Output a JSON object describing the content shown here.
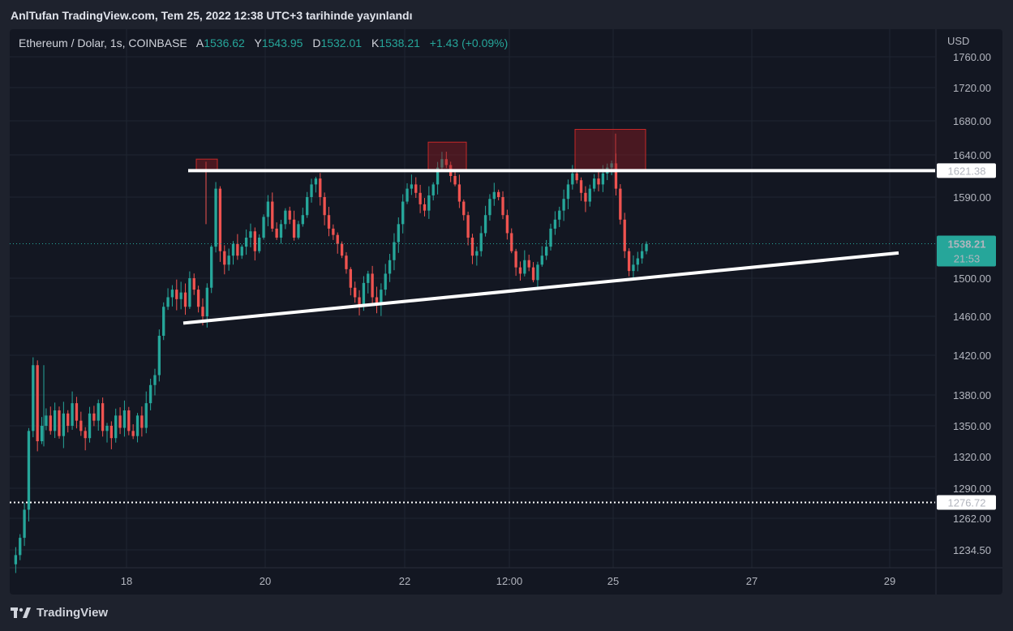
{
  "header": {
    "publisher_line": "AnlTufan TradingView.com, Tem 25, 2022 12:38 UTC+3 tarihinde yayınlandı"
  },
  "legend": {
    "symbol": "Ethereum / Dolar, 1s, COINBASE",
    "open_label": "A",
    "open": "1536.62",
    "high_label": "Y",
    "high": "1543.95",
    "low_label": "D",
    "low": "1532.01",
    "close_label": "K",
    "close": "1538.21",
    "change": "+1.43 (+0.09%)"
  },
  "footer": {
    "brand": "TradingView"
  },
  "colors": {
    "up": "#26a69a",
    "down": "#ef5350",
    "background": "#131722",
    "frame": "#1e222d",
    "grid": "#1f2531",
    "zone": "#8b1a22"
  },
  "chart_data": {
    "type": "candlestick",
    "currency_label": "USD",
    "y_ticks": [
      "1760.00",
      "1720.00",
      "1680.00",
      "1640.00",
      "1590.00",
      "1500.00",
      "1460.00",
      "1420.00",
      "1380.00",
      "1350.00",
      "1320.00",
      "1290.00",
      "1262.00",
      "1234.50"
    ],
    "y_tick_values": [
      1760,
      1720,
      1680,
      1640,
      1590,
      1500,
      1460,
      1420,
      1380,
      1350,
      1320,
      1290,
      1262,
      1234.5
    ],
    "x_ticks": [
      "18",
      "20",
      "22",
      "12:00",
      "25",
      "27",
      "29"
    ],
    "price_labels": [
      {
        "text": "1621.38",
        "value": 1621.38,
        "style": "outline"
      },
      {
        "text": "1538.21",
        "value": 1538.21,
        "style": "current",
        "countdown": "21:53"
      },
      {
        "text": "1276.72",
        "value": 1276.72,
        "style": "outline"
      }
    ],
    "current_price": 1538.21,
    "dotted_level": 1276.72,
    "resistance_line": 1621.38,
    "support_line": {
      "from": 1453,
      "to": 1528
    },
    "zones": [
      {
        "low": 1621.38,
        "high": 1635
      },
      {
        "low": 1621.38,
        "high": 1655
      },
      {
        "low": 1621.38,
        "high": 1670
      }
    ],
    "price_path": [
      1222,
      1230,
      1245,
      1270,
      1345,
      1410,
      1335,
      1350,
      1360,
      1345,
      1365,
      1340,
      1362,
      1350,
      1372,
      1355,
      1345,
      1338,
      1362,
      1355,
      1372,
      1345,
      1350,
      1338,
      1360,
      1348,
      1365,
      1345,
      1340,
      1360,
      1348,
      1372,
      1390,
      1400,
      1440,
      1470,
      1480,
      1488,
      1478,
      1485,
      1470,
      1500,
      1488,
      1470,
      1460,
      1490,
      1535,
      1600,
      1530,
      1515,
      1525,
      1538,
      1525,
      1535,
      1545,
      1552,
      1530,
      1545,
      1568,
      1585,
      1555,
      1545,
      1560,
      1575,
      1565,
      1545,
      1560,
      1570,
      1590,
      1605,
      1612,
      1590,
      1570,
      1555,
      1548,
      1538,
      1525,
      1510,
      1490,
      1480,
      1472,
      1495,
      1505,
      1480,
      1472,
      1488,
      1505,
      1520,
      1540,
      1560,
      1585,
      1600,
      1605,
      1595,
      1582,
      1575,
      1592,
      1605,
      1625,
      1635,
      1628,
      1615,
      1605,
      1585,
      1570,
      1545,
      1525,
      1530,
      1550,
      1570,
      1588,
      1596,
      1590,
      1570,
      1550,
      1530,
      1512,
      1505,
      1520,
      1512,
      1498,
      1515,
      1525,
      1535,
      1555,
      1565,
      1575,
      1588,
      1605,
      1618,
      1610,
      1595,
      1585,
      1600,
      1612,
      1605,
      1618,
      1625,
      1630,
      1600,
      1565,
      1530,
      1508,
      1515,
      1522,
      1530,
      1538
    ]
  }
}
